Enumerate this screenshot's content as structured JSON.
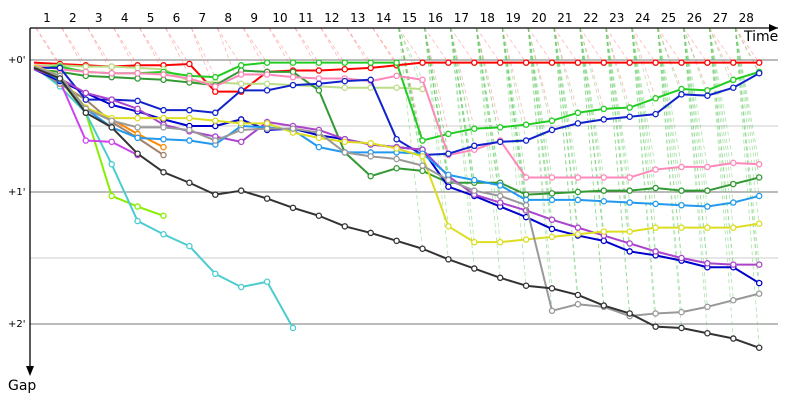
{
  "chart_data": {
    "type": "line",
    "xlabel": "Time",
    "ylabel": "Gap",
    "xlim": [
      0,
      29
    ],
    "ylim": [
      0,
      2.35
    ],
    "x_ticks": [
      "1",
      "2",
      "3",
      "4",
      "5",
      "6",
      "7",
      "8",
      "9",
      "10",
      "11",
      "12",
      "13",
      "14",
      "15",
      "16",
      "17",
      "18",
      "19",
      "20",
      "21",
      "22",
      "23",
      "24",
      "25",
      "26",
      "27",
      "28"
    ],
    "y_ticks": [
      {
        "value": 0,
        "label": "+0'"
      },
      {
        "value": 1,
        "label": "+1'"
      },
      {
        "value": 2,
        "label": "+2'"
      }
    ],
    "grid": true,
    "series": [
      {
        "color": "#ff0000",
        "values": [
          0.02,
          0.03,
          0.04,
          0.05,
          0.04,
          0.04,
          0.03,
          0.24,
          0.24,
          0.09,
          0.08,
          0.08,
          0.07,
          0.06,
          0.04,
          0.02,
          0.02,
          0.02,
          0.02,
          0.02,
          0.02,
          0.02,
          0.02,
          0.02,
          0.02,
          0.02,
          0.02,
          0.02,
          0.02
        ]
      },
      {
        "color": "#ff8800",
        "values": [
          0.05,
          0.15,
          0.37,
          0.45,
          0.56,
          0.66
        ]
      },
      {
        "color": "#88ee00",
        "values": [
          0.04,
          0.15,
          0.4,
          1.03,
          1.11,
          1.18
        ]
      },
      {
        "color": "#4cccd0",
        "values": [
          0.05,
          0.2,
          0.4,
          0.79,
          1.22,
          1.32,
          1.41,
          1.62,
          1.72,
          1.68,
          2.03
        ]
      },
      {
        "color": "#cc44ee",
        "values": [
          0.05,
          0.16,
          0.61,
          0.62,
          0.72
        ]
      },
      {
        "color": "#a0826c",
        "values": [
          0.05,
          0.18,
          0.3,
          0.47,
          0.59,
          0.72
        ]
      },
      {
        "color": "#bbdd88",
        "values": [
          0.04,
          0.04,
          0.05,
          0.05,
          0.06,
          0.07,
          0.16,
          0.17,
          0.18,
          0.18,
          0.19,
          0.2,
          0.21,
          0.21,
          0.21,
          0.22
        ]
      },
      {
        "color": "#339933",
        "values": [
          0.07,
          0.09,
          0.12,
          0.13,
          0.14,
          0.15,
          0.17,
          0.19,
          0.08,
          0.09,
          0.09,
          0.23,
          0.7,
          0.88,
          0.82,
          0.84,
          0.93,
          0.93,
          0.93,
          1.02,
          1.01,
          1.0,
          0.99,
          0.99,
          0.97,
          0.99,
          0.99,
          0.94,
          0.89
        ]
      },
      {
        "color": "#22cc22",
        "values": [
          0.06,
          0.05,
          0.09,
          0.1,
          0.1,
          0.09,
          0.12,
          0.13,
          0.04,
          0.02,
          0.02,
          0.02,
          0.02,
          0.02,
          0.02,
          0.61,
          0.56,
          0.52,
          0.51,
          0.49,
          0.46,
          0.4,
          0.37,
          0.36,
          0.29,
          0.22,
          0.23,
          0.15,
          0.09
        ]
      },
      {
        "color": "#ff88bb",
        "values": [
          0.04,
          0.07,
          0.09,
          0.1,
          0.1,
          0.11,
          0.14,
          0.2,
          0.11,
          0.11,
          0.13,
          0.14,
          0.14,
          0.16,
          0.12,
          0.15,
          0.72,
          0.68,
          0.61,
          0.89,
          0.89,
          0.89,
          0.89,
          0.89,
          0.83,
          0.81,
          0.81,
          0.78,
          0.79
        ]
      },
      {
        "color": "#1122cc",
        "values": [
          0.06,
          0.06,
          0.3,
          0.3,
          0.31,
          0.38,
          0.38,
          0.4,
          0.23,
          0.23,
          0.19,
          0.18,
          0.16,
          0.15,
          0.6,
          0.72,
          0.71,
          0.65,
          0.62,
          0.61,
          0.53,
          0.48,
          0.45,
          0.43,
          0.41,
          0.26,
          0.27,
          0.21,
          0.1
        ]
      },
      {
        "color": "#0000cc",
        "values": [
          0.07,
          0.16,
          0.25,
          0.34,
          0.39,
          0.45,
          0.5,
          0.5,
          0.45,
          0.53,
          0.52,
          0.57,
          0.6,
          0.64,
          0.66,
          0.68,
          0.96,
          1.03,
          1.11,
          1.19,
          1.28,
          1.33,
          1.37,
          1.45,
          1.48,
          1.52,
          1.57,
          1.57,
          1.69
        ]
      },
      {
        "color": "#aa44cc",
        "values": [
          0.07,
          0.14,
          0.25,
          0.3,
          0.37,
          0.49,
          0.54,
          0.58,
          0.62,
          0.47,
          0.5,
          0.53,
          0.6,
          0.64,
          0.66,
          0.68,
          0.88,
          1.02,
          1.08,
          1.14,
          1.21,
          1.27,
          1.33,
          1.39,
          1.45,
          1.5,
          1.54,
          1.55,
          1.55
        ]
      },
      {
        "color": "#2299ee",
        "values": [
          0.05,
          0.15,
          0.37,
          0.51,
          0.59,
          0.6,
          0.61,
          0.64,
          0.5,
          0.51,
          0.53,
          0.66,
          0.7,
          0.7,
          0.7,
          0.71,
          0.87,
          0.91,
          0.95,
          1.06,
          1.06,
          1.06,
          1.07,
          1.08,
          1.09,
          1.1,
          1.11,
          1.08,
          1.03
        ]
      },
      {
        "color": "#dddd22",
        "values": [
          0.04,
          0.12,
          0.36,
          0.44,
          0.44,
          0.44,
          0.44,
          0.46,
          0.48,
          0.48,
          0.55,
          0.59,
          0.62,
          0.63,
          0.67,
          0.73,
          1.26,
          1.38,
          1.38,
          1.36,
          1.34,
          1.32,
          1.3,
          1.3,
          1.27,
          1.27,
          1.27,
          1.27,
          1.24
        ]
      },
      {
        "color": "#999999",
        "values": [
          0.05,
          0.12,
          0.37,
          0.46,
          0.51,
          0.51,
          0.53,
          0.61,
          0.53,
          0.52,
          0.52,
          0.55,
          0.7,
          0.73,
          0.75,
          0.8,
          0.91,
          0.99,
          1.03,
          1.1,
          1.9,
          1.85,
          1.87,
          1.94,
          1.92,
          1.91,
          1.87,
          1.82,
          1.77
        ]
      },
      {
        "color": "#333333",
        "values": [
          0.06,
          0.14,
          0.4,
          0.51,
          0.71,
          0.85,
          0.93,
          1.02,
          0.99,
          1.05,
          1.12,
          1.18,
          1.26,
          1.31,
          1.37,
          1.43,
          1.51,
          1.58,
          1.65,
          1.71,
          1.73,
          1.78,
          1.86,
          1.92,
          2.02,
          2.03,
          2.07,
          2.11,
          2.18
        ]
      }
    ]
  }
}
